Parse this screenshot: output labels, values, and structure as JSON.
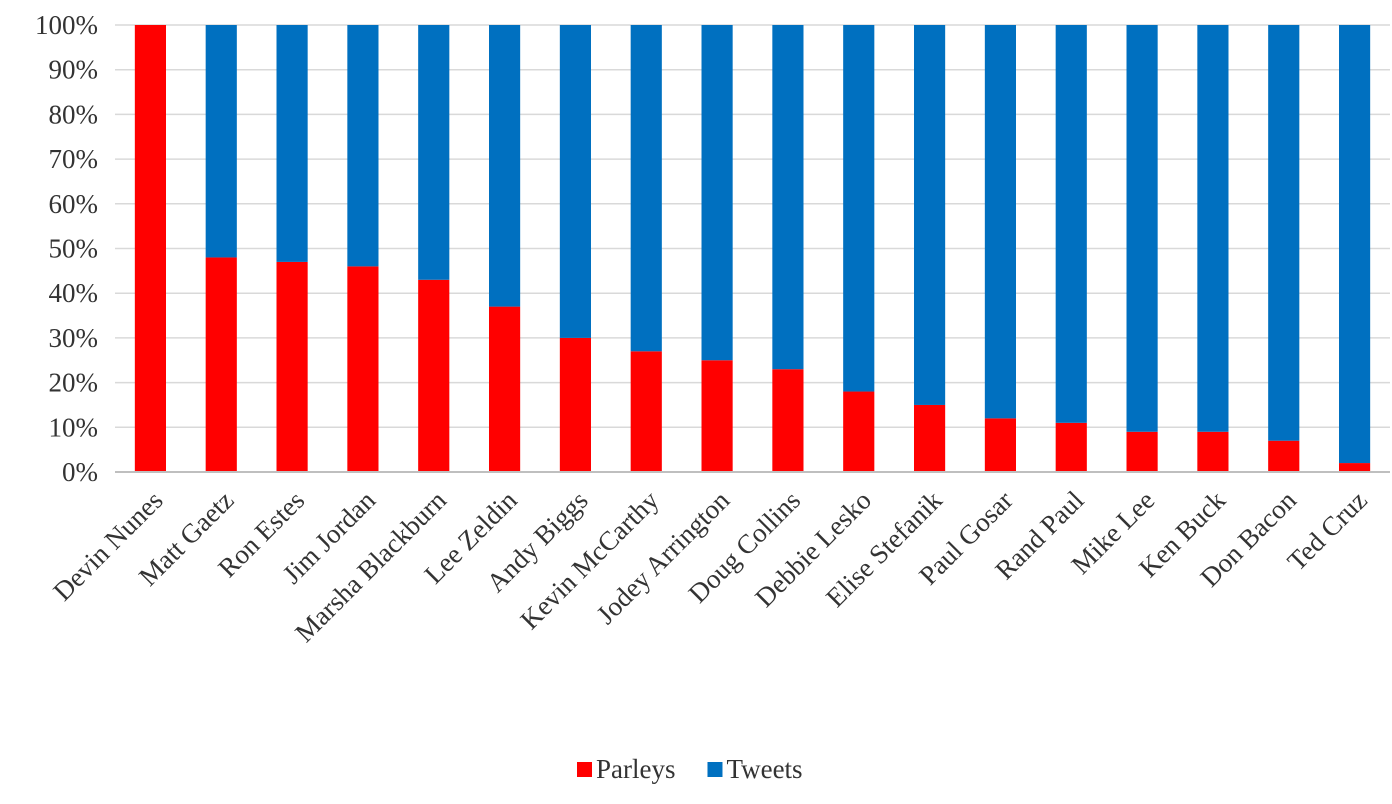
{
  "chart_data": {
    "type": "bar",
    "stacked": true,
    "percent_stacked": true,
    "categories": [
      "Devin Nunes",
      "Matt Gaetz",
      "Ron Estes",
      "Jim Jordan",
      "Marsha Blackburn",
      "Lee Zeldin",
      "Andy Biggs",
      "Kevin McCarthy",
      "Jodey Arrington",
      "Doug Collins",
      "Debbie Lesko",
      "Elise Stefanik",
      "Paul Gosar",
      "Rand Paul",
      "Mike Lee",
      "Ken Buck",
      "Don Bacon",
      "Ted Cruz"
    ],
    "series": [
      {
        "name": "Parleys",
        "color": "#ff0000",
        "values": [
          100,
          48,
          47,
          46,
          43,
          37,
          30,
          27,
          25,
          23,
          18,
          15,
          12,
          11,
          9,
          9,
          7,
          2
        ]
      },
      {
        "name": "Tweets",
        "color": "#0070c0",
        "values": [
          0,
          52,
          53,
          54,
          57,
          63,
          70,
          73,
          75,
          77,
          82,
          85,
          88,
          89,
          91,
          91,
          93,
          98
        ]
      }
    ],
    "yticks": [
      "0%",
      "10%",
      "20%",
      "30%",
      "40%",
      "50%",
      "60%",
      "70%",
      "80%",
      "90%",
      "100%"
    ],
    "ylim": [
      0,
      100
    ],
    "title": "",
    "xlabel": "",
    "ylabel": "",
    "grid": true,
    "legend_position": "bottom"
  }
}
